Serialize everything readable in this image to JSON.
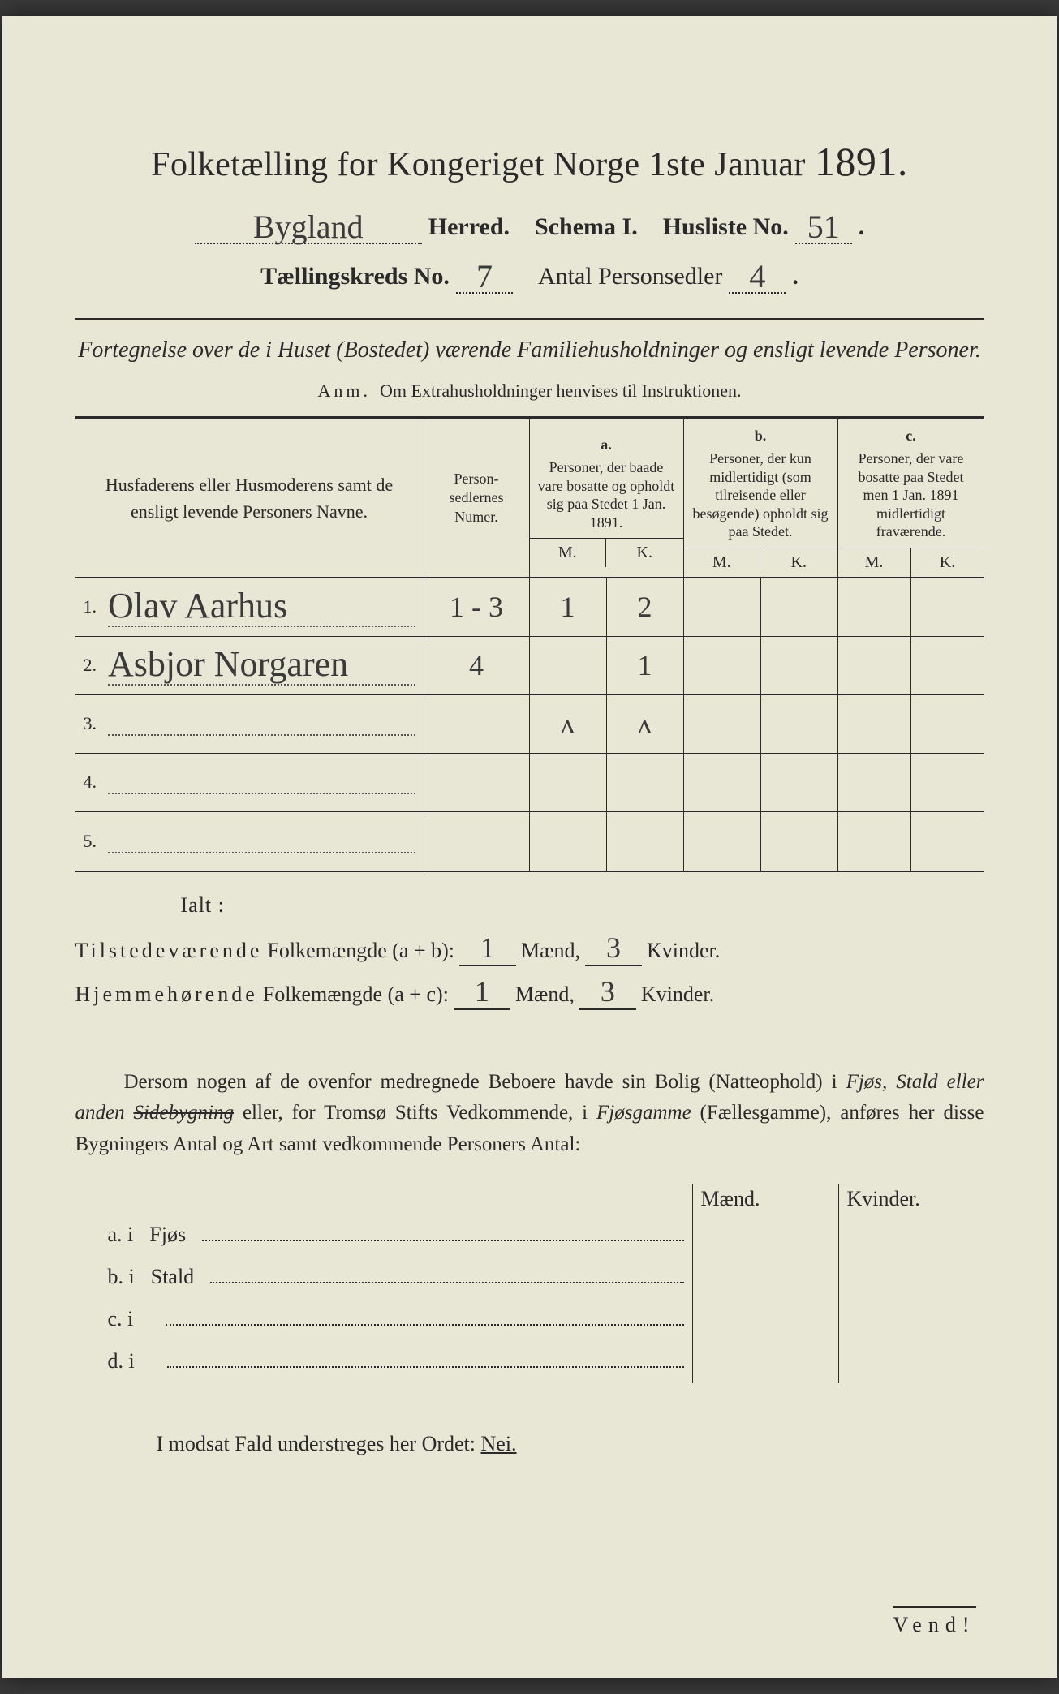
{
  "colors": {
    "paper": "#e8e6d4",
    "ink": "#2a2a2a",
    "handwriting": "#3a3a3a",
    "background": "#3a3a3a"
  },
  "typography": {
    "body_family": "Georgia, 'Times New Roman', serif",
    "handwritten_family": "'Brush Script MT', cursive",
    "title_fontsize_pt": 32,
    "year_fontsize_pt": 38,
    "body_fontsize_pt": 20,
    "handwritten_fontsize_pt": 30
  },
  "header": {
    "title_prefix": "Folketælling for Kongeriget Norge 1ste Januar",
    "year": "1891.",
    "herred_value": "Bygland",
    "herred_label": "Herred.",
    "schema_label": "Schema I.",
    "husliste_label": "Husliste No.",
    "husliste_value": "51",
    "kreds_label": "Tællingskreds No.",
    "kreds_value": "7",
    "antal_label": "Antal Personsedler",
    "antal_value": "4"
  },
  "subtitle": "Fortegnelse over de i Huset (Bostedet) værende Familiehusholdninger og ensligt levende Personer.",
  "anm": {
    "label": "Anm.",
    "text": "Om Extrahusholdninger henvises til Instruktionen."
  },
  "table": {
    "type": "table",
    "columns": {
      "c1": "Husfaderens eller Husmoderens samt de ensligt levende Personers Navne.",
      "c2": "Person-sedlernes Numer.",
      "a_letter": "a.",
      "a_text": "Personer, der baade vare bosatte og opholdt sig paa Stedet 1 Jan. 1891.",
      "b_letter": "b.",
      "b_text": "Personer, der kun midlertidigt (som tilreisende eller besøgende) opholdt sig paa Stedet.",
      "c_letter": "c.",
      "c_text": "Personer, der vare bosatte paa Stedet men 1 Jan. 1891 midlertidigt fraværende.",
      "mk_m": "M.",
      "mk_k": "K."
    },
    "rows": [
      {
        "idx": "1.",
        "name": "Olav Aarhus",
        "num": "1 - 3",
        "a_m": "1",
        "a_k": "2",
        "b_m": "",
        "b_k": "",
        "c_m": "",
        "c_k": ""
      },
      {
        "idx": "2.",
        "name": "Asbjor Norgaren",
        "num": "4",
        "a_m": "",
        "a_k": "1",
        "b_m": "",
        "b_k": "",
        "c_m": "",
        "c_k": ""
      },
      {
        "idx": "3.",
        "name": "",
        "num": "",
        "a_m": "ʌ",
        "a_k": "ʌ",
        "b_m": "",
        "b_k": "",
        "c_m": "",
        "c_k": ""
      },
      {
        "idx": "4.",
        "name": "",
        "num": "",
        "a_m": "",
        "a_k": "",
        "b_m": "",
        "b_k": "",
        "c_m": "",
        "c_k": ""
      },
      {
        "idx": "5.",
        "name": "",
        "num": "",
        "a_m": "",
        "a_k": "",
        "b_m": "",
        "b_k": "",
        "c_m": "",
        "c_k": ""
      }
    ]
  },
  "totals": {
    "ialt": "Ialt :",
    "line1_label_spaced": "Tilstedeværende",
    "line1_rest": "Folkemængde (a + b):",
    "line2_label_spaced": "Hjemmehørende",
    "line2_rest": "Folkemængde (a + c):",
    "maend_label": "Mænd,",
    "kvinder_label": "Kvinder.",
    "line1_m": "1",
    "line1_k": "3",
    "line2_m": "1",
    "line2_k": "3"
  },
  "dersom": {
    "text_1": "Dersom nogen af de ovenfor medregnede Beboere havde sin Bolig (Natteophold) i ",
    "em1": "Fjøs, Stald eller anden ",
    "strk": "Sidebygning",
    "text_2": " eller, for Tromsø Stifts Vedkommende, i ",
    "em2": "Fjøsgamme",
    "text_3": " (Fællesgamme), anføres her disse Bygningers Antal og Art samt vedkommende Personers Antal:"
  },
  "mk": {
    "maend": "Mænd.",
    "kvinder": "Kvinder.",
    "rows": [
      {
        "lbl": "a. i",
        "name": "Fjøs"
      },
      {
        "lbl": "b. i",
        "name": "Stald"
      },
      {
        "lbl": "c. i",
        "name": ""
      },
      {
        "lbl": "d. i",
        "name": ""
      }
    ]
  },
  "modsat": {
    "text": "I modsat Fald understreges her Ordet: ",
    "nei": "Nei."
  },
  "vend": "Vend!"
}
